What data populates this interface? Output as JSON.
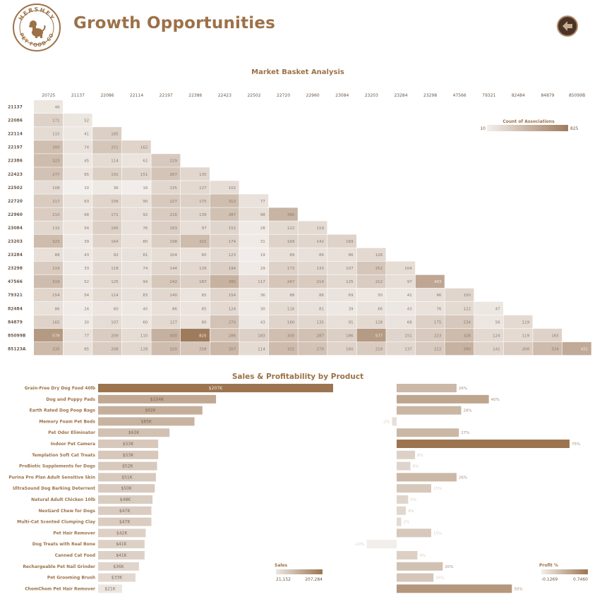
{
  "header": {
    "title": "Growth Opportunities",
    "logo_text_top": "HERSHEY",
    "logo_text_bottom": "PET FOOD CO"
  },
  "colors": {
    "brand": "#9c7148",
    "heat_low": "#f3efec",
    "heat_high": "#9f7b5e",
    "bar_low": "#ece6e2",
    "bar_high": "#9c7550"
  },
  "chart_data": [
    {
      "type": "heatmap",
      "title": "Market Basket Analysis",
      "columns": [
        "20725",
        "21137",
        "22086",
        "22114",
        "22197",
        "22386",
        "22423",
        "22502",
        "22720",
        "22960",
        "23084",
        "23203",
        "23284",
        "23298",
        "47566",
        "79321",
        "82484",
        "84879",
        "85099B"
      ],
      "rows": [
        "21137",
        "22086",
        "22114",
        "22197",
        "22386",
        "22423",
        "22502",
        "22720",
        "22960",
        "23084",
        "23203",
        "23284",
        "23298",
        "47566",
        "79321",
        "82484",
        "84879",
        "85099B",
        "85123A"
      ],
      "values": [
        [
          46
        ],
        [
          171,
          52
        ],
        [
          115,
          41,
          185
        ],
        [
          300,
          74,
          251,
          162
        ],
        [
          323,
          45,
          114,
          62,
          229
        ],
        [
          277,
          65,
          191,
          151,
          267,
          135
        ],
        [
          108,
          10,
          36,
          16,
          135,
          127,
          102
        ],
        [
          217,
          63,
          156,
          90,
          227,
          175,
          312,
          77
        ],
        [
          210,
          68,
          171,
          92,
          216,
          139,
          287,
          98,
          380
        ],
        [
          132,
          54,
          185,
          76,
          193,
          97,
          152,
          28,
          122,
          119
        ],
        [
          323,
          39,
          164,
          80,
          198,
          321,
          174,
          31,
          169,
          142,
          169
        ],
        [
          88,
          43,
          92,
          81,
          104,
          80,
          123,
          19,
          89,
          86,
          86,
          126
        ],
        [
          219,
          33,
          118,
          74,
          144,
          129,
          194,
          29,
          173,
          133,
          107,
          252,
          104
        ],
        [
          319,
          52,
          125,
          94,
          242,
          187,
          395,
          117,
          247,
          214,
          125,
          212,
          97,
          483
        ],
        [
          154,
          54,
          114,
          83,
          140,
          65,
          154,
          36,
          88,
          86,
          69,
          50,
          41,
          96,
          150
        ],
        [
          86,
          24,
          60,
          40,
          86,
          65,
          124,
          30,
          116,
          81,
          39,
          66,
          43,
          76,
          122,
          47
        ],
        [
          165,
          30,
          107,
          60,
          127,
          80,
          270,
          43,
          160,
          135,
          91,
          128,
          68,
          175,
          234,
          56,
          119
        ],
        [
          579,
          77,
          209,
          110,
          400,
          825,
          286,
          183,
          305,
          287,
          186,
          577,
          151,
          223,
          328,
          124,
          119,
          165
        ],
        [
          335,
          85,
          208,
          128,
          320,
          258,
          357,
          114,
          325,
          270,
          160,
          219,
          137,
          222,
          390,
          141,
          208,
          324,
          451
        ]
      ],
      "legend": {
        "title": "Count of Associations",
        "min_label": "10",
        "max_label": "825",
        "min": 10,
        "max": 825
      }
    },
    {
      "type": "bar",
      "title": "Sales & Profitability by Product",
      "categories": [
        "Grain-Free Dry Dog Food 40lb",
        "Dog and Puppy Pads",
        "Earth Rated Dog Poop Bags",
        "Memory Foam Pet Beds",
        "Pet Odor Eliminator",
        "Indoor Pet Camera",
        "Templation Soft Cat Treats",
        "ProBiotic Supplements for Dogs",
        "Purina Pro Plan Adult Sensitive Skin",
        "UltraSound Dog Barking Deterrent",
        "Natural Adult Chicken 10lb",
        "NexGard Chew for Dogs",
        "Multi-Cat Scented Clumping Clay",
        "Pet Hair Remover",
        "Dog Treats with Real Bone",
        "Canned Cat Food",
        "Rechargeable Pet Nail Grinder",
        "Pet Grooming Brush",
        "ChomChom Pet Hair Remover"
      ],
      "series": [
        {
          "name": "Sales",
          "values": [
            207284,
            104000,
            92000,
            85000,
            63000,
            53000,
            53000,
            52000,
            51000,
            50000,
            48000,
            47000,
            47000,
            42000,
            41000,
            41000,
            36000,
            33000,
            21152
          ],
          "labels": [
            "$207K",
            "$104K",
            "$92K",
            "$85K",
            "$63K",
            "$53K",
            "$53K",
            "$52K",
            "$51K",
            "$50K",
            "$48K",
            "$47K",
            "$47K",
            "$42K",
            "$41K",
            "$41K",
            "$36K",
            "$33K",
            "$21K"
          ]
        },
        {
          "name": "Profit %",
          "values": [
            0.26,
            0.4,
            0.28,
            -0.02,
            0.27,
            0.75,
            0.08,
            0.06,
            0.26,
            0.15,
            0.05,
            0.04,
            0.02,
            0.15,
            -0.13,
            0.09,
            0.2,
            0.16,
            0.5
          ],
          "labels": [
            "26%",
            "40%",
            "28%",
            "-2%",
            "27%",
            "75%",
            "8%",
            "6%",
            "26%",
            "15%",
            "5%",
            "4%",
            "2%",
            "15%",
            "-13%",
            "9%",
            "20%",
            "16%",
            "50%"
          ]
        }
      ],
      "sales_legend": {
        "title": "Sales",
        "min_label": "21,152",
        "max_label": "207,284",
        "min": 21152,
        "max": 207284
      },
      "profit_legend": {
        "title": "Profit %",
        "min_label": "-0.1269",
        "max_label": "0.7460",
        "min": -0.1269,
        "max": 0.746
      }
    }
  ]
}
